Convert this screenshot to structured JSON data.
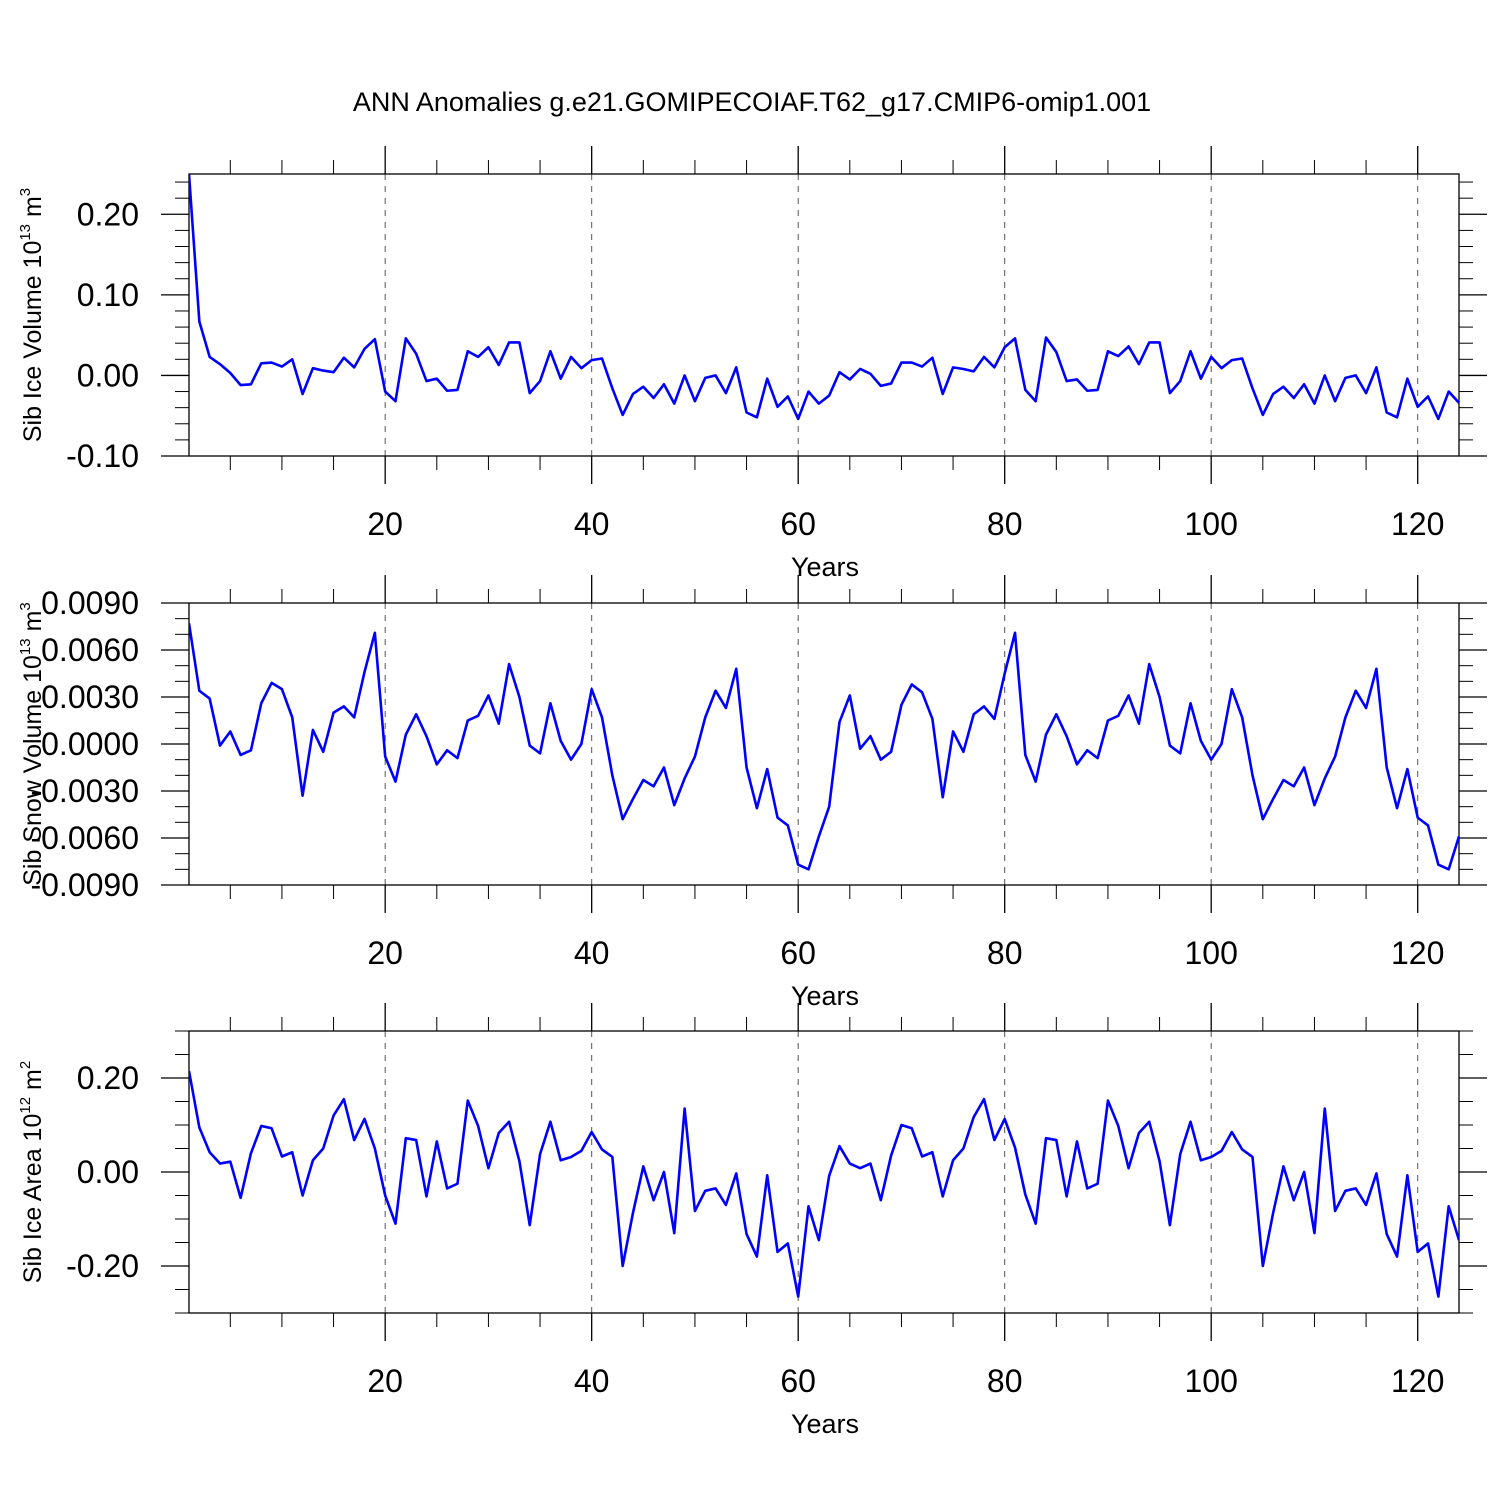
{
  "figure_title": "ANN Anomalies g.e21.GOMIPECOIAF.T62_g17.CMIP6-omip1.001",
  "line_color": "#0000ff",
  "chart_data": [
    {
      "type": "line",
      "ylabel_main": "Sib Ice Volume 10",
      "ylabel_exp": "13",
      "ylabel_unit": " m",
      "ylabel_unit_exp": "3",
      "xlabel": "Years",
      "xlim": [
        1,
        124
      ],
      "ylim": [
        -0.1,
        0.25
      ],
      "x_ticks": [
        20,
        40,
        60,
        80,
        100,
        120
      ],
      "x_tick_labels": [
        "20",
        "40",
        "60",
        "80",
        "100",
        "120"
      ],
      "y_ticks": [
        -0.1,
        0.0,
        0.1,
        0.2
      ],
      "y_tick_labels": [
        "-0.10",
        "0.00",
        "0.10",
        "0.20"
      ],
      "y_minor_step": 0.02,
      "grid_x_dashed": true,
      "series": [
        {
          "name": "Sib Ice Volume anomaly",
          "x_start": 1,
          "values": [
            0.25,
            0.067,
            0.023,
            0.014,
            0.003,
            -0.012,
            -0.011,
            0.015,
            0.016,
            0.011,
            0.02,
            -0.023,
            0.009,
            0.006,
            0.004,
            0.022,
            0.01,
            0.033,
            0.045,
            -0.02,
            -0.032,
            0.046,
            0.027,
            -0.007,
            -0.004,
            -0.019,
            -0.018,
            0.03,
            0.023,
            0.035,
            0.013,
            0.041,
            0.041,
            -0.022,
            -0.007,
            0.03,
            -0.004,
            0.023,
            0.009,
            0.019,
            0.021,
            -0.016,
            -0.049,
            -0.023,
            -0.014,
            -0.028,
            -0.011,
            -0.035,
            0.0,
            -0.032,
            -0.003,
            0.0,
            -0.022,
            0.01,
            -0.046,
            -0.052,
            -0.004,
            -0.039,
            -0.026,
            -0.054,
            -0.02,
            -0.035,
            -0.025,
            0.004,
            -0.005,
            0.008,
            0.002,
            -0.013,
            -0.01,
            0.016,
            0.016,
            0.011,
            0.022,
            -0.023,
            0.01,
            0.008,
            0.005,
            0.023,
            0.01,
            0.035,
            0.046,
            -0.018,
            -0.032,
            0.047,
            0.029,
            -0.007,
            -0.005,
            -0.019,
            -0.018,
            0.03,
            0.024,
            0.036,
            0.014,
            0.041,
            0.041,
            -0.022,
            -0.007,
            0.03,
            -0.004,
            0.023,
            0.009,
            0.019,
            0.021,
            -0.016,
            -0.049,
            -0.023,
            -0.014,
            -0.028,
            -0.011,
            -0.035,
            0.0,
            -0.032,
            -0.003,
            0.0,
            -0.022,
            0.01,
            -0.046,
            -0.052,
            -0.004,
            -0.039,
            -0.026,
            -0.054,
            -0.02,
            -0.034
          ]
        }
      ]
    },
    {
      "type": "line",
      "ylabel_main": "Sib Snow Volume 10",
      "ylabel_exp": "13",
      "ylabel_unit": " m",
      "ylabel_unit_exp": "3",
      "xlabel": "Years",
      "xlim": [
        1,
        124
      ],
      "ylim": [
        -0.009,
        0.009
      ],
      "x_ticks": [
        20,
        40,
        60,
        80,
        100,
        120
      ],
      "x_tick_labels": [
        "20",
        "40",
        "60",
        "80",
        "100",
        "120"
      ],
      "y_ticks": [
        -0.009,
        -0.006,
        -0.003,
        0.0,
        0.003,
        0.006,
        0.009
      ],
      "y_tick_labels": [
        "-0.0090",
        "-0.0060",
        "-0.0030",
        "0.0000",
        "0.0030",
        "0.0060",
        "0.0090"
      ],
      "y_minor_step": 0.001,
      "grid_x_dashed": true,
      "series": [
        {
          "name": "Sib Snow Volume anomaly",
          "x_start": 1,
          "values": [
            0.0077,
            0.0034,
            0.0029,
            -0.0001,
            0.0008,
            -0.0007,
            -0.0004,
            0.0026,
            0.0039,
            0.0035,
            0.0017,
            -0.0033,
            0.0009,
            -0.0005,
            0.002,
            0.0024,
            0.0017,
            0.0046,
            0.0071,
            -0.0008,
            -0.0024,
            0.0006,
            0.0019,
            0.0005,
            -0.0013,
            -0.0004,
            -0.0009,
            0.0015,
            0.0018,
            0.0031,
            0.0013,
            0.0051,
            0.003,
            -0.0001,
            -0.0006,
            0.0026,
            0.0002,
            -0.001,
            0.0,
            0.0035,
            0.0017,
            -0.002,
            -0.0048,
            -0.0035,
            -0.0023,
            -0.0027,
            -0.0015,
            -0.0039,
            -0.0022,
            -0.0008,
            0.0017,
            0.0034,
            0.0023,
            0.0048,
            -0.0015,
            -0.0041,
            -0.0016,
            -0.0047,
            -0.0052,
            -0.0077,
            -0.008,
            -0.0059,
            -0.004,
            0.0014,
            0.0031,
            -0.0003,
            0.0005,
            -0.001,
            -0.0005,
            0.0025,
            0.0038,
            0.0033,
            0.0016,
            -0.0034,
            0.0008,
            -0.0005,
            0.0019,
            0.0024,
            0.0016,
            0.0045,
            0.0071,
            -0.0007,
            -0.0024,
            0.0006,
            0.0019,
            0.0005,
            -0.0013,
            -0.0004,
            -0.0009,
            0.0015,
            0.0018,
            0.0031,
            0.0013,
            0.0051,
            0.003,
            -0.0001,
            -0.0006,
            0.0026,
            0.0002,
            -0.001,
            0.0,
            0.0035,
            0.0017,
            -0.002,
            -0.0048,
            -0.0035,
            -0.0023,
            -0.0027,
            -0.0015,
            -0.0039,
            -0.0022,
            -0.0008,
            0.0017,
            0.0034,
            0.0023,
            0.0048,
            -0.0015,
            -0.0041,
            -0.0016,
            -0.0047,
            -0.0052,
            -0.0077,
            -0.008,
            -0.0059
          ]
        }
      ]
    },
    {
      "type": "line",
      "ylabel_main": "Sib Ice Area 10",
      "ylabel_exp": "12",
      "ylabel_unit": " m",
      "ylabel_unit_exp": "2",
      "xlabel": "Years",
      "xlim": [
        1,
        124
      ],
      "ylim": [
        -0.3,
        0.3
      ],
      "x_ticks": [
        20,
        40,
        60,
        80,
        100,
        120
      ],
      "x_tick_labels": [
        "20",
        "40",
        "60",
        "80",
        "100",
        "120"
      ],
      "y_ticks": [
        -0.2,
        0.0,
        0.2
      ],
      "y_tick_labels": [
        "-0.20",
        "0.00",
        "0.20"
      ],
      "y_minor_step": 0.05,
      "grid_x_dashed": true,
      "series": [
        {
          "name": "Sib Ice Area anomaly",
          "x_start": 1,
          "values": [
            0.215,
            0.095,
            0.042,
            0.018,
            0.022,
            -0.055,
            0.04,
            0.098,
            0.093,
            0.033,
            0.042,
            -0.05,
            0.025,
            0.05,
            0.12,
            0.155,
            0.068,
            0.113,
            0.05,
            -0.05,
            -0.11,
            0.072,
            0.068,
            -0.052,
            0.065,
            -0.035,
            -0.025,
            0.152,
            0.098,
            0.008,
            0.083,
            0.107,
            0.023,
            -0.113,
            0.038,
            0.107,
            0.025,
            0.032,
            0.045,
            0.085,
            0.048,
            0.032,
            -0.2,
            -0.087,
            0.012,
            -0.06,
            0.0,
            -0.13,
            0.135,
            -0.083,
            -0.04,
            -0.035,
            -0.07,
            -0.003,
            -0.132,
            -0.18,
            -0.007,
            -0.17,
            -0.152,
            -0.265,
            -0.073,
            -0.145,
            -0.008,
            0.055,
            0.018,
            0.008,
            0.018,
            -0.06,
            0.035,
            0.1,
            0.093,
            0.033,
            0.042,
            -0.052,
            0.025,
            0.05,
            0.117,
            0.155,
            0.068,
            0.113,
            0.052,
            -0.048,
            -0.11,
            0.072,
            0.068,
            -0.052,
            0.065,
            -0.035,
            -0.025,
            0.152,
            0.098,
            0.008,
            0.083,
            0.107,
            0.023,
            -0.113,
            0.038,
            0.107,
            0.025,
            0.032,
            0.045,
            0.085,
            0.048,
            0.032,
            -0.2,
            -0.087,
            0.012,
            -0.06,
            0.0,
            -0.13,
            0.135,
            -0.083,
            -0.04,
            -0.035,
            -0.07,
            -0.003,
            -0.132,
            -0.18,
            -0.007,
            -0.17,
            -0.152,
            -0.265,
            -0.073,
            -0.145
          ]
        }
      ]
    }
  ]
}
